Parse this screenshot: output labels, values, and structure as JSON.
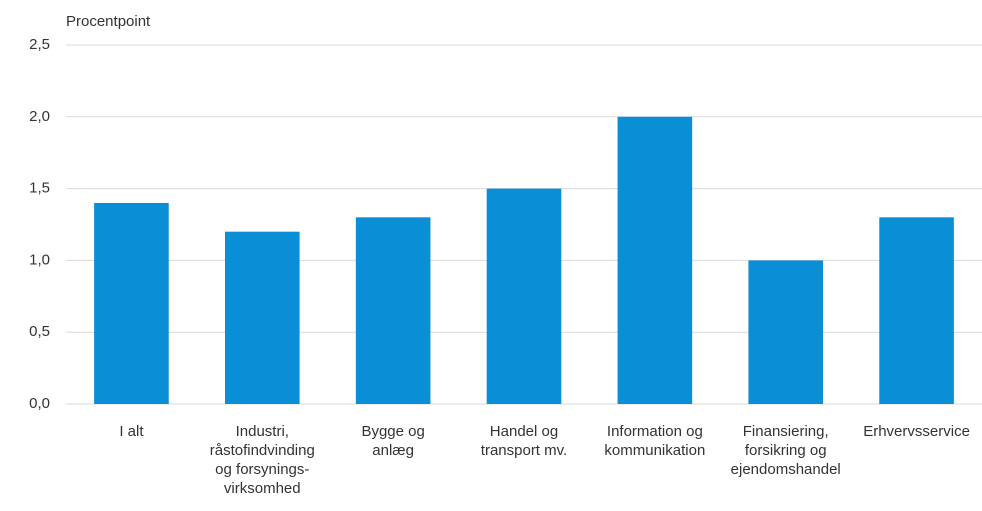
{
  "chart_data": {
    "type": "bar",
    "y_label": "Procentpoint",
    "categories": [
      [
        "I alt"
      ],
      [
        "Industri,",
        "råstofindvinding",
        "og forsynings-",
        "virksomhed"
      ],
      [
        "Bygge og",
        "anlæg"
      ],
      [
        "Handel og",
        "transport mv."
      ],
      [
        "Information og",
        "kommunikation"
      ],
      [
        "Finansiering,",
        "forsikring og",
        "ejendomshandel"
      ],
      [
        "Erhvervsservice"
      ]
    ],
    "values": [
      1.4,
      1.2,
      1.3,
      1.5,
      2.0,
      1.0,
      1.3
    ],
    "color": "#0a8fd6",
    "ylim": [
      0,
      2.5
    ],
    "yticks": [
      {
        "value": 0,
        "label": "0,0"
      },
      {
        "value": 0.5,
        "label": "0,5"
      },
      {
        "value": 1,
        "label": "1,0"
      },
      {
        "value": 1.5,
        "label": "1,5"
      },
      {
        "value": 2,
        "label": "2,0"
      },
      {
        "value": 2.5,
        "label": "2,5"
      }
    ],
    "grid": true
  }
}
